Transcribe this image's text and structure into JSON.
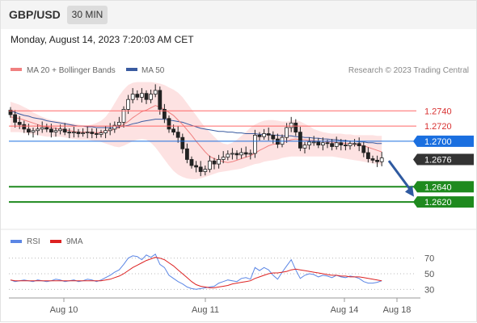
{
  "header": {
    "symbol": "GBP/USD",
    "interval": "30 MIN",
    "datetime": "Monday, August 14, 2023 7:20:03 AM CET"
  },
  "colors": {
    "ma20": "#f08080",
    "bollinger_fill": "#fde2e2",
    "ma50": "#3a5ba0",
    "candle_up": "#ffffff",
    "candle_down": "#222222",
    "resistance": "#ff6666",
    "pivot": "#1a6fe0",
    "support": "#1e8a1e",
    "current": "#333333",
    "arrow": "#2f5aa0",
    "rsi": "#5b86e5",
    "rsi_ma": "#dd2222"
  },
  "legend": {
    "ma20_label": "MA 20 + Bollinger Bands",
    "ma50_label": "MA 50",
    "credit": "Research © 2023 Trading Central"
  },
  "rsi_legend": {
    "rsi_label": "RSI",
    "ma_label": "9MA"
  },
  "chart_data": {
    "type": "candlestick",
    "price_range": [
      1.2585,
      1.2785
    ],
    "levels": [
      {
        "value": 1.274,
        "label": "1.2740",
        "kind": "resistance"
      },
      {
        "value": 1.272,
        "label": "1.2720",
        "kind": "resistance"
      },
      {
        "value": 1.27,
        "label": "1.2700",
        "kind": "pivot"
      },
      {
        "value": 1.2676,
        "label": "1.2676",
        "kind": "current"
      },
      {
        "value": 1.264,
        "label": "1.2640",
        "kind": "support"
      },
      {
        "value": 1.262,
        "label": "1.2620",
        "kind": "support"
      }
    ],
    "closes": [
      1.2735,
      1.2725,
      1.2722,
      1.2716,
      1.2712,
      1.2714,
      1.2716,
      1.2718,
      1.2716,
      1.2712,
      1.2714,
      1.2716,
      1.2712,
      1.2711,
      1.2712,
      1.271,
      1.2711,
      1.2712,
      1.271,
      1.2709,
      1.2711,
      1.2714,
      1.2716,
      1.2721,
      1.2725,
      1.2742,
      1.2755,
      1.2762,
      1.2758,
      1.2763,
      1.2755,
      1.2762,
      1.2767,
      1.2742,
      1.273,
      1.2716,
      1.2712,
      1.2705,
      1.269,
      1.2676,
      1.2668,
      1.2666,
      1.266,
      1.2663,
      1.2674,
      1.267,
      1.2676,
      1.2679,
      1.2683,
      1.2684,
      1.2682,
      1.2685,
      1.2683,
      1.2684,
      1.2708,
      1.2706,
      1.271,
      1.2708,
      1.2703,
      1.2696,
      1.2705,
      1.2718,
      1.2724,
      1.2712,
      1.2691,
      1.2695,
      1.2699,
      1.2699,
      1.2695,
      1.2698,
      1.2697,
      1.2693,
      1.2698,
      1.2695,
      1.2694,
      1.2697,
      1.2697,
      1.2694,
      1.2685,
      1.2677,
      1.2675,
      1.2673,
      1.2678
    ],
    "ma20": [
      1.2732,
      1.2731,
      1.273,
      1.2728,
      1.2726,
      1.2724,
      1.2722,
      1.272,
      1.2719,
      1.2718,
      1.2717,
      1.2716,
      1.2715,
      1.2714,
      1.2713,
      1.2712,
      1.2712,
      1.2712,
      1.2712,
      1.2711,
      1.2712,
      1.2713,
      1.2714,
      1.2716,
      1.2718,
      1.2722,
      1.2726,
      1.2731,
      1.2735,
      1.2739,
      1.2741,
      1.2744,
      1.2747,
      1.2745,
      1.2742,
      1.2738,
      1.2734,
      1.2728,
      1.2722,
      1.2715,
      1.2708,
      1.27,
      1.2693,
      1.2686,
      1.268,
      1.2677,
      1.2675,
      1.2673,
      1.2672,
      1.2673,
      1.2675,
      1.2677,
      1.2679,
      1.2681,
      1.2684,
      1.2688,
      1.2691,
      1.2694,
      1.2696,
      1.2697,
      1.2698,
      1.27,
      1.2702,
      1.2703,
      1.2702,
      1.2702,
      1.2701,
      1.2701,
      1.27,
      1.27,
      1.2699,
      1.2699,
      1.2698,
      1.2698,
      1.2697,
      1.2697,
      1.2696,
      1.2695,
      1.2694,
      1.2692,
      1.269,
      1.2688,
      1.2686
    ],
    "ma50": [
      1.274,
      1.2738,
      1.2736,
      1.2734,
      1.2733,
      1.2731,
      1.273,
      1.2729,
      1.2727,
      1.2726,
      1.2725,
      1.2724,
      1.2723,
      1.2722,
      1.2721,
      1.272,
      1.272,
      1.2719,
      1.2719,
      1.2718,
      1.2718,
      1.2718,
      1.2718,
      1.2718,
      1.2719,
      1.272,
      1.2721,
      1.2723,
      1.2724,
      1.2726,
      1.2727,
      1.2728,
      1.2729,
      1.2729,
      1.2729,
      1.2728,
      1.2727,
      1.2726,
      1.2725,
      1.2723,
      1.2721,
      1.2719,
      1.2717,
      1.2716,
      1.2715,
      1.2714,
      1.2713,
      1.2713,
      1.2712,
      1.2712,
      1.2711,
      1.2711,
      1.271,
      1.271,
      1.271,
      1.2709,
      1.2709,
      1.2709,
      1.2708,
      1.2708,
      1.2707,
      1.2707,
      1.2707,
      1.2706,
      1.2706,
      1.2705,
      1.2705,
      1.2704,
      1.2704,
      1.2703,
      1.2703,
      1.2702,
      1.2702,
      1.2701,
      1.2701,
      1.27,
      1.27,
      1.2699,
      1.2699,
      1.2698,
      1.2698,
      1.2697,
      1.2697
    ],
    "bb_upper": [
      1.2752,
      1.275,
      1.2748,
      1.2745,
      1.2742,
      1.2738,
      1.2735,
      1.2732,
      1.273,
      1.2728,
      1.2727,
      1.2726,
      1.2725,
      1.2724,
      1.2723,
      1.2722,
      1.2721,
      1.2721,
      1.2722,
      1.2724,
      1.2727,
      1.2732,
      1.274,
      1.275,
      1.276,
      1.2768,
      1.2774,
      1.2777,
      1.2778,
      1.2778,
      1.2778,
      1.2778,
      1.2777,
      1.2776,
      1.2774,
      1.2771,
      1.2768,
      1.2764,
      1.2758,
      1.275,
      1.2742,
      1.2734,
      1.2726,
      1.2718,
      1.2712,
      1.2706,
      1.27,
      1.2697,
      1.2696,
      1.2698,
      1.2702,
      1.2707,
      1.2712,
      1.2718,
      1.2722,
      1.2725,
      1.2727,
      1.2728,
      1.2728,
      1.2727,
      1.2726,
      1.2726,
      1.2727,
      1.2728,
      1.2726,
      1.2723,
      1.272,
      1.2716,
      1.2714,
      1.2712,
      1.2711,
      1.271,
      1.271,
      1.271,
      1.2709,
      1.2709,
      1.2708,
      1.2708,
      1.2708,
      1.2708,
      1.2708,
      1.2707,
      1.2707
    ],
    "bb_lower": [
      1.2712,
      1.2712,
      1.2712,
      1.2711,
      1.271,
      1.2709,
      1.2708,
      1.2707,
      1.2706,
      1.2706,
      1.2706,
      1.2706,
      1.2705,
      1.2704,
      1.2703,
      1.2702,
      1.2702,
      1.2702,
      1.2701,
      1.27,
      1.2699,
      1.2697,
      1.2695,
      1.2693,
      1.2692,
      1.2694,
      1.2697,
      1.27,
      1.2702,
      1.2703,
      1.2702,
      1.2698,
      1.2692,
      1.2684,
      1.2676,
      1.2668,
      1.2661,
      1.2656,
      1.2653,
      1.2651,
      1.265,
      1.265,
      1.2651,
      1.2653,
      1.2655,
      1.2657,
      1.2659,
      1.266,
      1.2661,
      1.2662,
      1.2663,
      1.2664,
      1.2666,
      1.2668,
      1.267,
      1.2671,
      1.2673,
      1.2674,
      1.2675,
      1.2676,
      1.2678,
      1.2679,
      1.268,
      1.268,
      1.268,
      1.268,
      1.268,
      1.268,
      1.268,
      1.268,
      1.268,
      1.268,
      1.2679,
      1.2678,
      1.2677,
      1.2676,
      1.2675,
      1.2674,
      1.2673,
      1.2672,
      1.2671,
      1.267,
      1.2669
    ],
    "rsi_range": [
      20,
      80
    ],
    "rsi_levels": [
      70,
      50,
      30
    ],
    "rsi": [
      42,
      40,
      41,
      42,
      41,
      40,
      42,
      41,
      40,
      41,
      43,
      42,
      40,
      41,
      42,
      40,
      41,
      43,
      42,
      40,
      42,
      45,
      48,
      52,
      55,
      62,
      70,
      73,
      72,
      68,
      74,
      71,
      75,
      62,
      58,
      48,
      44,
      40,
      37,
      33,
      31,
      30,
      31,
      32,
      33,
      34,
      38,
      40,
      42,
      41,
      40,
      44,
      45,
      43,
      58,
      54,
      58,
      55,
      48,
      43,
      52,
      60,
      68,
      55,
      44,
      48,
      50,
      49,
      46,
      48,
      47,
      45,
      48,
      46,
      45,
      47,
      46,
      44,
      40,
      38,
      38,
      39,
      41
    ],
    "rsi_ma": [
      42,
      41,
      41,
      41,
      41,
      41,
      41,
      41,
      41,
      41,
      41,
      41,
      41,
      41,
      41,
      41,
      41,
      41,
      41,
      41,
      41,
      42,
      43,
      45,
      47,
      50,
      54,
      58,
      61,
      64,
      67,
      69,
      71,
      70,
      68,
      64,
      60,
      55,
      50,
      45,
      40,
      36,
      34,
      33,
      32,
      32,
      33,
      34,
      35,
      37,
      38,
      39,
      40,
      41,
      44,
      46,
      48,
      50,
      51,
      51,
      52,
      53,
      55,
      56,
      55,
      54,
      53,
      52,
      51,
      50,
      49,
      48,
      48,
      47,
      47,
      46,
      46,
      46,
      45,
      44,
      43,
      42,
      41
    ],
    "x_labels": [
      {
        "label": "Aug 10",
        "index": 8
      },
      {
        "label": "Aug 11",
        "index": 29
      },
      {
        "label": "Aug 14",
        "index": 50
      },
      {
        "label": "Aug 18",
        "index": 58
      }
    ],
    "forecast_arrow": {
      "from_index": 58,
      "from_value": 1.267,
      "to_index": 62,
      "to_value": 1.2628
    }
  }
}
